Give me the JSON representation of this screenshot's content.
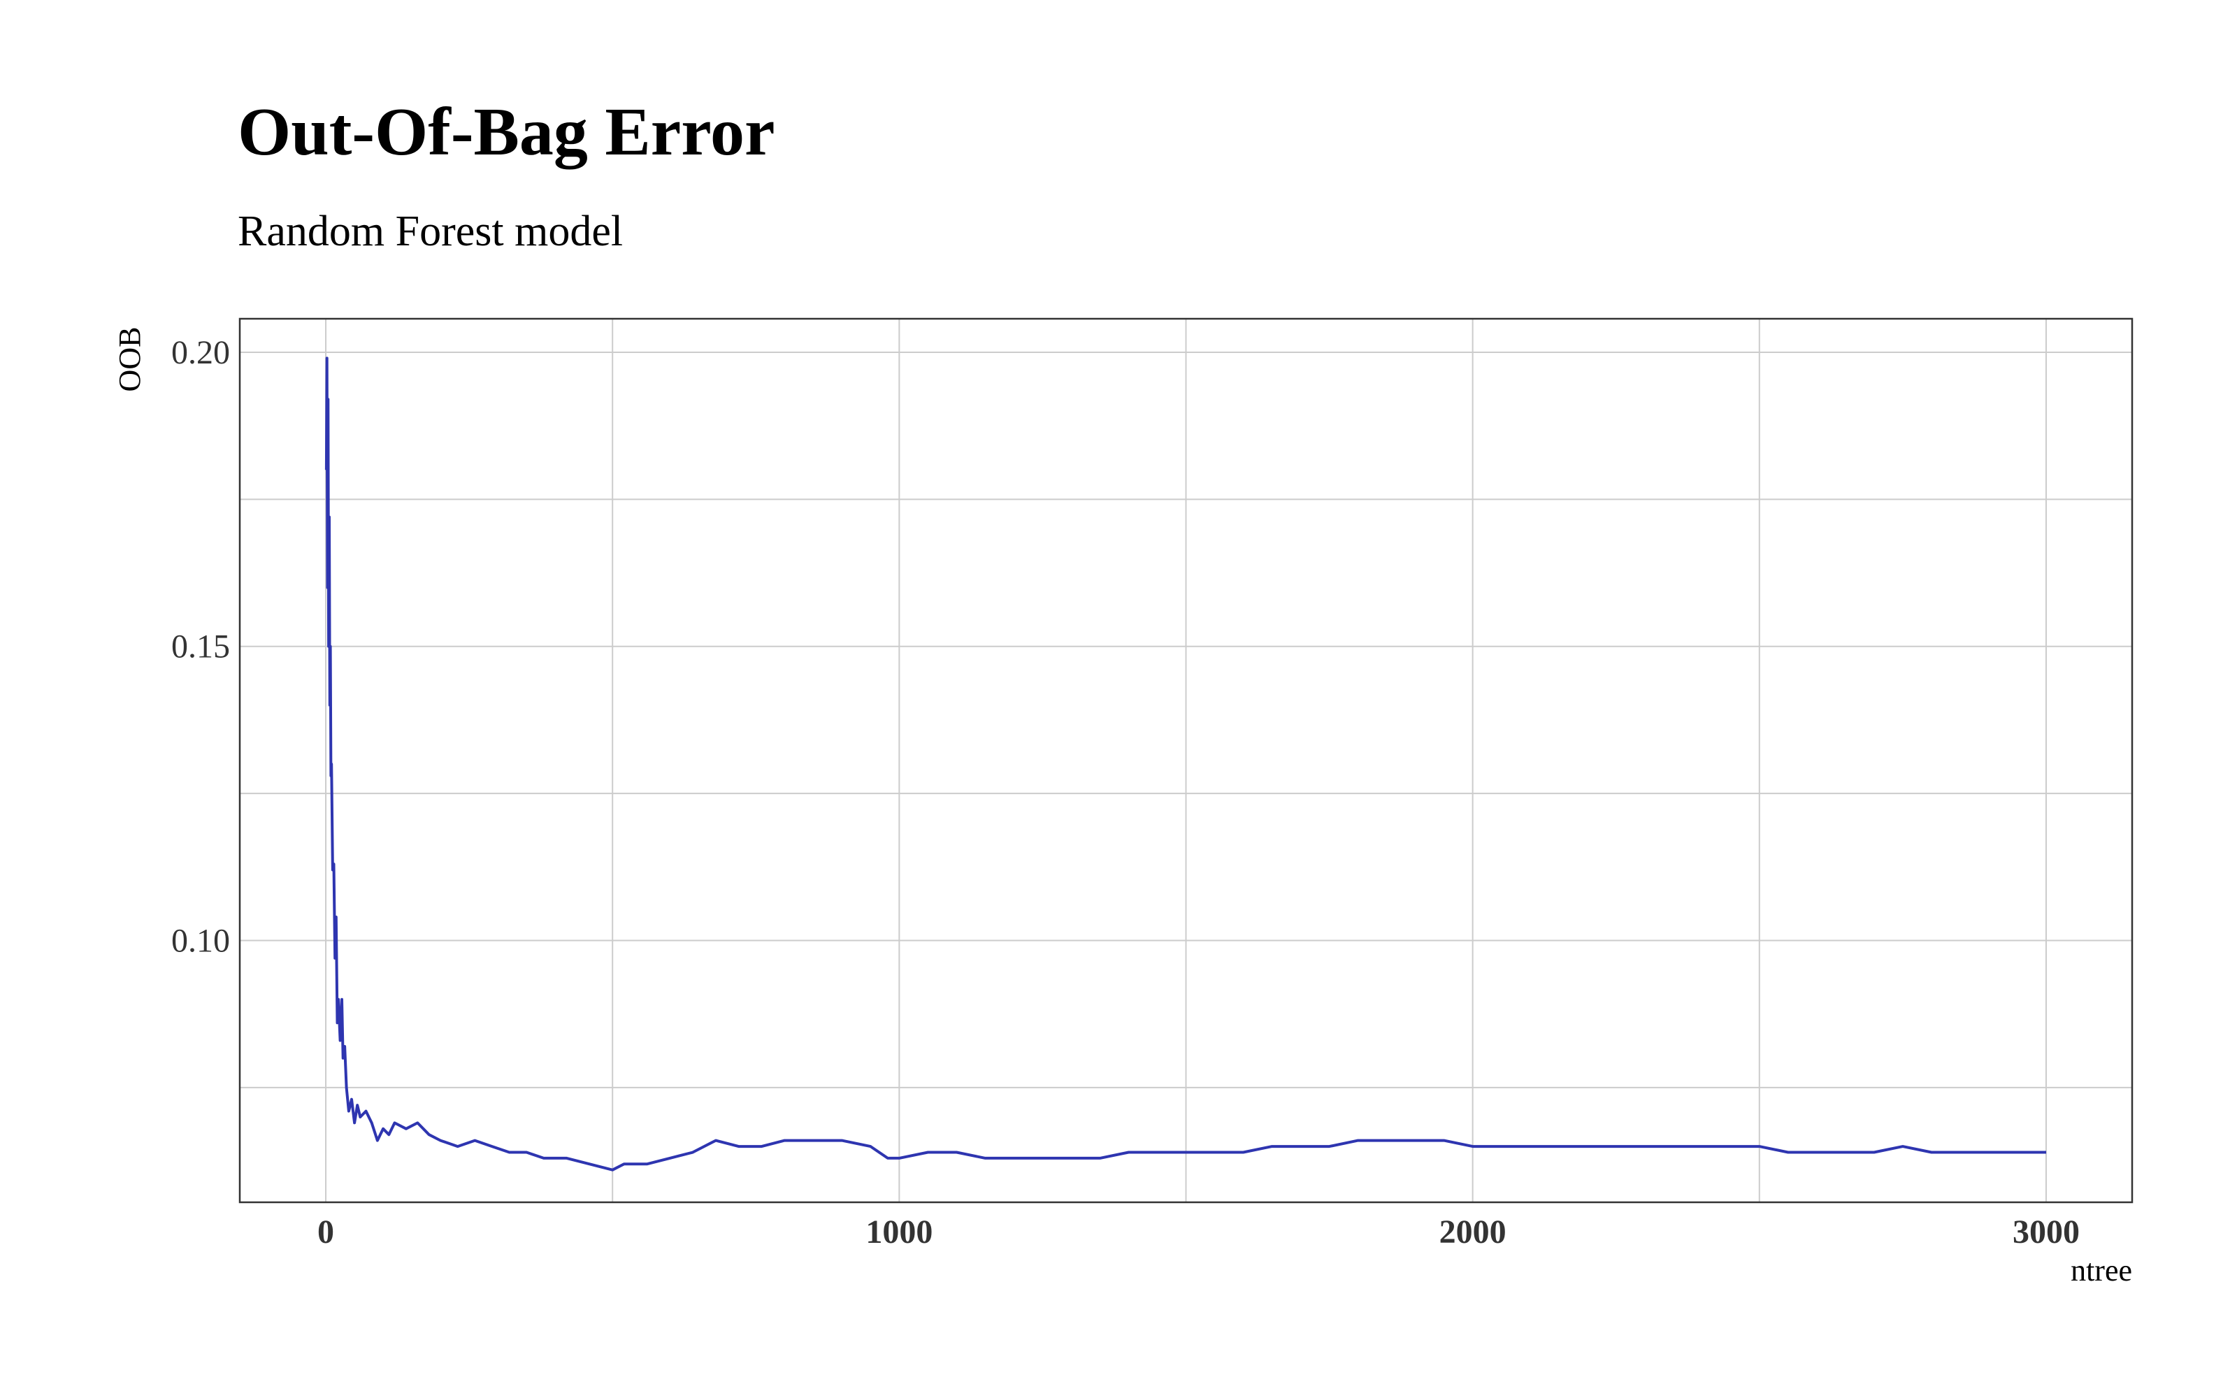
{
  "chart_data": {
    "type": "line",
    "title": "Out-Of-Bag Error",
    "subtitle": "Random Forest model",
    "xlabel": "ntree",
    "ylabel": "OOB",
    "xlim": [
      -150,
      3150
    ],
    "ylim": [
      0.0555,
      0.2057
    ],
    "x_ticks": [
      0,
      1000,
      2000,
      3000
    ],
    "x_tick_labels": [
      "0",
      "1000",
      "2000",
      "3000"
    ],
    "y_ticks": [
      0.1,
      0.15,
      0.2
    ],
    "y_tick_labels": [
      "0.10",
      "0.15",
      "0.20"
    ],
    "y_minor_ticks": [
      0.075,
      0.125,
      0.175
    ],
    "x_minor_ticks": [
      500,
      1500,
      2500
    ],
    "grid": true,
    "series": [
      {
        "color": "#2e35b0",
        "x": [
          1,
          2,
          3,
          4,
          5,
          6,
          7,
          8,
          9,
          10,
          12,
          14,
          16,
          18,
          20,
          22,
          25,
          28,
          30,
          33,
          36,
          40,
          45,
          50,
          55,
          60,
          70,
          80,
          90,
          100,
          110,
          120,
          140,
          160,
          180,
          200,
          230,
          260,
          290,
          320,
          350,
          380,
          420,
          460,
          500,
          520,
          560,
          600,
          640,
          680,
          720,
          760,
          800,
          850,
          900,
          950,
          980,
          1000,
          1050,
          1100,
          1150,
          1200,
          1250,
          1300,
          1350,
          1400,
          1450,
          1500,
          1550,
          1600,
          1650,
          1700,
          1750,
          1800,
          1850,
          1900,
          1950,
          2000,
          2050,
          2100,
          2150,
          2200,
          2250,
          2300,
          2350,
          2400,
          2450,
          2500,
          2550,
          2600,
          2650,
          2700,
          2750,
          2800,
          2850,
          2900,
          2950,
          3000
        ],
        "y": [
          0.18,
          0.199,
          0.16,
          0.192,
          0.15,
          0.172,
          0.14,
          0.15,
          0.128,
          0.13,
          0.112,
          0.113,
          0.097,
          0.104,
          0.086,
          0.09,
          0.083,
          0.09,
          0.08,
          0.082,
          0.075,
          0.071,
          0.073,
          0.069,
          0.072,
          0.07,
          0.071,
          0.069,
          0.066,
          0.068,
          0.067,
          0.069,
          0.068,
          0.069,
          0.067,
          0.066,
          0.065,
          0.066,
          0.065,
          0.064,
          0.064,
          0.063,
          0.063,
          0.062,
          0.061,
          0.062,
          0.062,
          0.063,
          0.064,
          0.066,
          0.065,
          0.065,
          0.066,
          0.066,
          0.066,
          0.065,
          0.063,
          0.063,
          0.064,
          0.064,
          0.063,
          0.063,
          0.063,
          0.063,
          0.063,
          0.064,
          0.064,
          0.064,
          0.064,
          0.064,
          0.065,
          0.065,
          0.065,
          0.066,
          0.066,
          0.066,
          0.066,
          0.065,
          0.065,
          0.065,
          0.065,
          0.065,
          0.065,
          0.065,
          0.065,
          0.065,
          0.065,
          0.065,
          0.064,
          0.064,
          0.064,
          0.064,
          0.065,
          0.064,
          0.064,
          0.064,
          0.064,
          0.064
        ]
      }
    ]
  }
}
